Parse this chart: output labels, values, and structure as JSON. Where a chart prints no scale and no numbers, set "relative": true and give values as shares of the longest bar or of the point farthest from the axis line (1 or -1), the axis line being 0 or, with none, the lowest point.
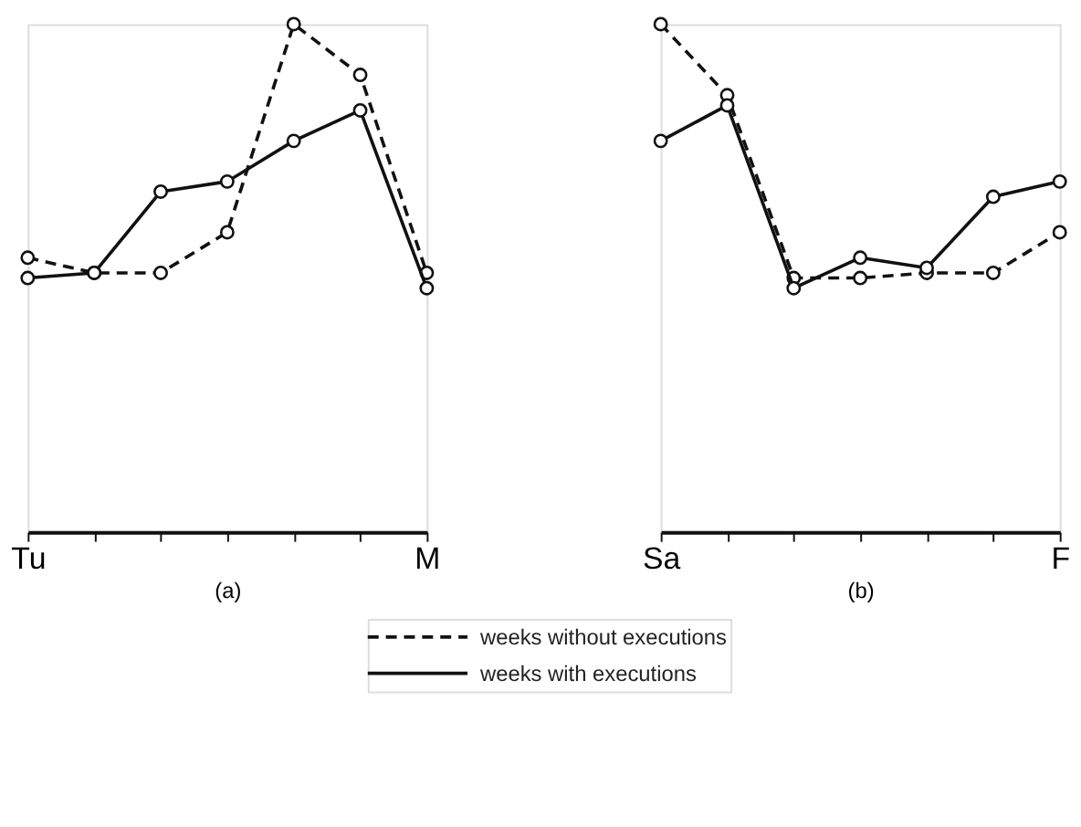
{
  "chart_data": [
    {
      "type": "line",
      "xlabel": "(a)",
      "categories": [
        "Tu",
        null,
        null,
        null,
        null,
        null,
        "M"
      ],
      "relative": true,
      "marker": "circle",
      "legend": "bottom",
      "grid": false,
      "series": [
        {
          "name": "weeks without executions",
          "color": "#111111",
          "line_style": "dashed",
          "values": [
            0.54,
            0.51,
            0.51,
            0.59,
            1,
            0.9,
            0.51
          ]
        },
        {
          "name": "weeks with executions",
          "color": "#111111",
          "line_style": "solid",
          "values": [
            0.5,
            0.51,
            0.67,
            0.69,
            0.77,
            0.83,
            0.48
          ]
        }
      ]
    },
    {
      "type": "line",
      "xlabel": "(b)",
      "categories": [
        "Sa",
        null,
        null,
        null,
        null,
        null,
        "F"
      ],
      "relative": true,
      "marker": "circle",
      "grid": false,
      "series": [
        {
          "color": "#111111",
          "line_style": "dashed",
          "values": [
            1,
            0.86,
            0.5,
            0.5,
            0.51,
            0.51,
            0.59
          ]
        },
        {
          "color": "#111111",
          "line_style": "solid",
          "values": [
            0.77,
            0.84,
            0.48,
            0.54,
            0.52,
            0.66,
            0.69
          ]
        }
      ]
    }
  ]
}
